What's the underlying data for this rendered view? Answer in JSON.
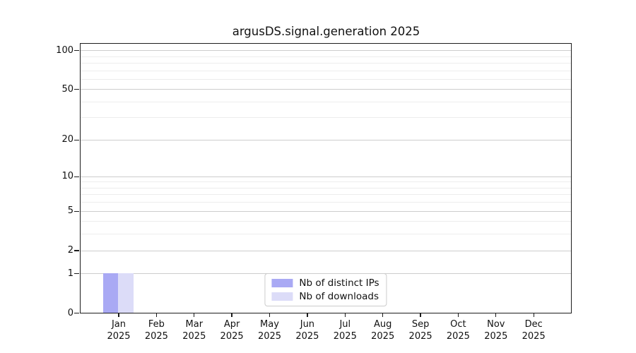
{
  "figure": {
    "background": "#ffffff"
  },
  "chart_data": {
    "type": "bar",
    "title": "argusDS.signal.generation 2025",
    "categories": [
      "Jan",
      "Feb",
      "Mar",
      "Apr",
      "May",
      "Jun",
      "Jul",
      "Aug",
      "Sep",
      "Oct",
      "Nov",
      "Dec"
    ],
    "category_year": "2025",
    "series": [
      {
        "name": "Nb of distinct IPs",
        "color": "#a9a9f4",
        "values": [
          1,
          0,
          0,
          0,
          0,
          0,
          0,
          0,
          0,
          0,
          0,
          0
        ]
      },
      {
        "name": "Nb of downloads",
        "color": "#dcdcf8",
        "values": [
          1,
          0,
          0,
          0,
          0,
          0,
          0,
          0,
          0,
          0,
          0,
          0
        ]
      }
    ],
    "xlabel": "",
    "ylabel": "",
    "yscale": "log1p",
    "ylim": [
      0,
      112
    ],
    "yticks": [
      0,
      1,
      2,
      5,
      10,
      20,
      50,
      100
    ],
    "yticks_minor": [
      3,
      4,
      6,
      7,
      8,
      9,
      30,
      40,
      60,
      70,
      80,
      90
    ],
    "grid": "horizontal",
    "legend_position": "lower center"
  },
  "colors": {
    "major_grid": "#cdcdcd",
    "minor_grid": "#ededed",
    "spine": "#1c1c1c",
    "text": "#111111",
    "legend_border": "#cccccc"
  }
}
